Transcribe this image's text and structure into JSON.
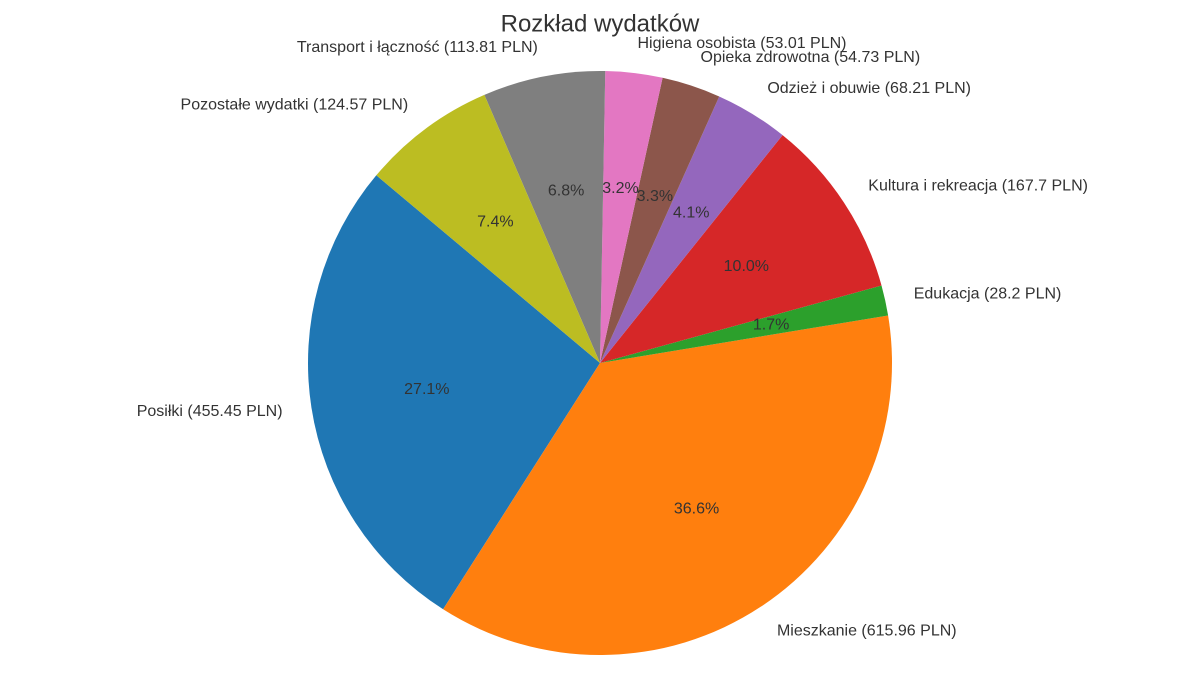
{
  "chart_data": {
    "type": "pie",
    "title": "Rozkład wydatków",
    "categories": [
      "Posiłki (455.45 PLN)",
      "Mieszkanie (615.96 PLN)",
      "Edukacja (28.2 PLN)",
      "Kultura i rekreacja (167.7 PLN)",
      "Odzież i obuwie (68.21 PLN)",
      "Opieka zdrowotna (54.73 PLN)",
      "Higiena osobista (53.01 PLN)",
      "Transport i łączność (113.81 PLN)",
      "Pozostałe wydatki (124.57 PLN)"
    ],
    "values": [
      455.45,
      615.96,
      28.2,
      167.7,
      68.21,
      54.73,
      53.01,
      113.81,
      124.57
    ],
    "percent_labels": [
      "27.1%",
      "36.6%",
      "1.7%",
      "10.0%",
      "4.1%",
      "3.3%",
      "3.2%",
      "6.8%",
      "7.4%"
    ],
    "colors": [
      "#1f77b4",
      "#ff7f0e",
      "#2ca02c",
      "#d62728",
      "#9467bd",
      "#8c564b",
      "#e377c2",
      "#7f7f7f",
      "#bcbd22"
    ],
    "start_angle": 140
  }
}
